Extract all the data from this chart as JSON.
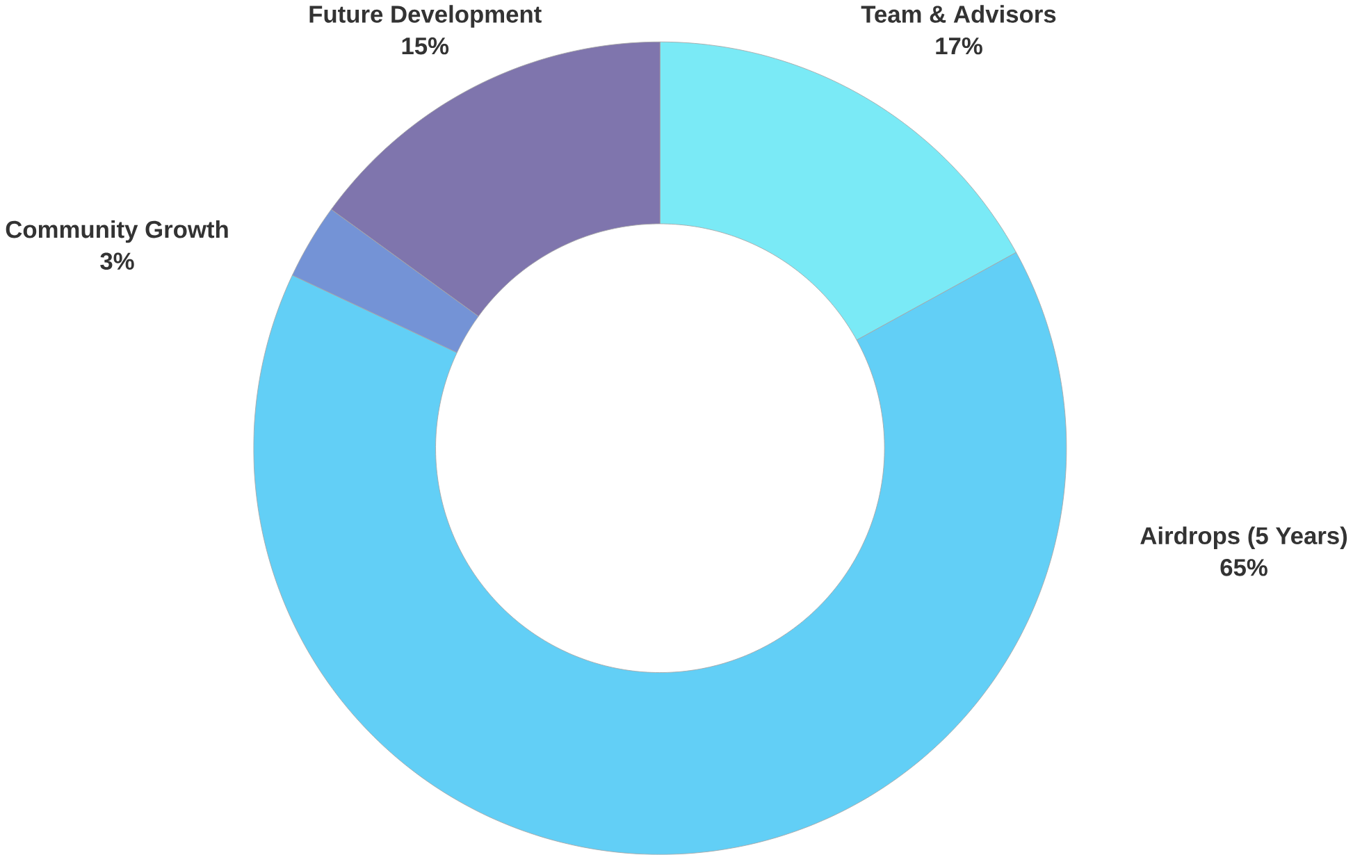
{
  "chart_data": {
    "type": "donut",
    "categories": [
      "Team & Advisors",
      "Airdrops (5 Years)",
      "Community Growth",
      "Future Development"
    ],
    "values": [
      17,
      65,
      3,
      15
    ],
    "value_labels": [
      "17%",
      "65%",
      "3%",
      "15%"
    ],
    "colors": [
      "#7aeaf6",
      "#62cff6",
      "#7493d6",
      "#7f75ad"
    ]
  }
}
